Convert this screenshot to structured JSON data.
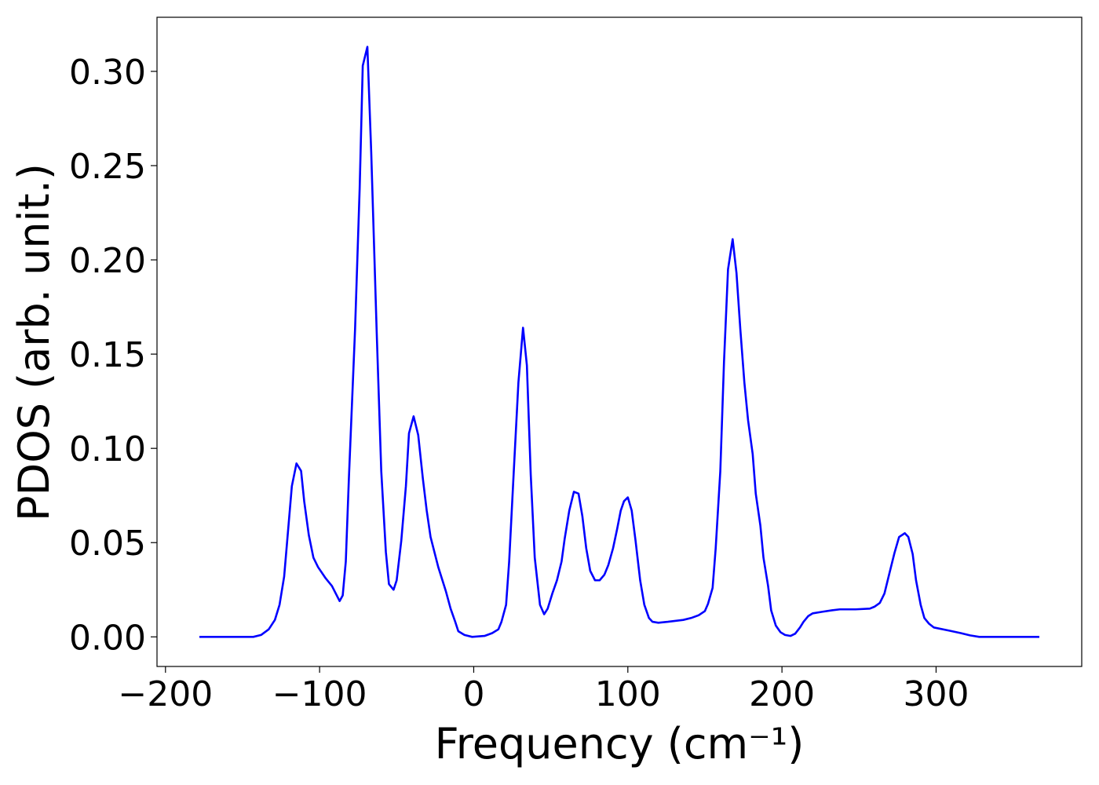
{
  "chart_data": {
    "type": "line",
    "xlabel": "Frequency (cm⁻¹)",
    "ylabel": "PDOS (arb. unit.)",
    "xlim": [
      -205.5,
      394.5
    ],
    "ylim": [
      -0.0157,
      0.3287
    ],
    "xticks": [
      {
        "value": -200,
        "label": "−200"
      },
      {
        "value": -100,
        "label": "−100"
      },
      0,
      100,
      200,
      300
    ],
    "yticks": [
      {
        "value": 0,
        "label": "0.00"
      },
      {
        "value": 0.05,
        "label": "0.05"
      },
      {
        "value": 0.1,
        "label": "0.10"
      },
      {
        "value": 0.15,
        "label": "0.15"
      },
      {
        "value": 0.2,
        "label": "0.20"
      },
      {
        "value": 0.25,
        "label": "0.25"
      },
      {
        "value": 0.3,
        "label": "0.30"
      }
    ],
    "grid": false,
    "series": [
      {
        "color": "#0000ff",
        "x": [
          -178,
          -143,
          -138,
          -133,
          -129,
          -126,
          -123,
          -118,
          -115,
          -112,
          -110,
          -107,
          -104,
          -101,
          -96,
          -92,
          -87,
          -85,
          -83,
          -81,
          -77,
          -74,
          -72,
          -69,
          -66.5,
          -63,
          -60,
          -57,
          -55,
          -52,
          -50,
          -47,
          -44,
          -42,
          -39,
          -36,
          -33,
          -30.5,
          -28,
          -23,
          -18,
          -15,
          -12,
          -10,
          -6,
          -1,
          7,
          12,
          16,
          18,
          21,
          23,
          26,
          29,
          32,
          34.5,
          37,
          39.6,
          43,
          45.7,
          48,
          51,
          54,
          57,
          59,
          62,
          65,
          68,
          70.5,
          73,
          75.6,
          78.7,
          81.7,
          84.8,
          87.3,
          90.4,
          93,
          95.4,
          97.5,
          100,
          102.5,
          105,
          108,
          110.7,
          113.7,
          116,
          119.8,
          126,
          136,
          141,
          146,
          150,
          152,
          155,
          157,
          160,
          162.4,
          165,
          168,
          170.5,
          173,
          175.6,
          178,
          181,
          183,
          186,
          188,
          191,
          193,
          196,
          199,
          202,
          205.6,
          208.6,
          211.7,
          214,
          217,
          220,
          226,
          232.5,
          237.5,
          247.7,
          257,
          260,
          263.5,
          266.5,
          269.5,
          273,
          276,
          279.7,
          282,
          284.8,
          287,
          290,
          292.4,
          295.4,
          298.5,
          308.6,
          316,
          322,
          328,
          367
        ],
        "values": [
          0,
          0,
          0.001,
          0.004,
          0.009,
          0.017,
          0.032,
          0.08,
          0.092,
          0.088,
          0.072,
          0.054,
          0.042,
          0.037,
          0.031,
          0.027,
          0.019,
          0.022,
          0.04,
          0.084,
          0.163,
          0.238,
          0.303,
          0.313,
          0.257,
          0.163,
          0.088,
          0.045,
          0.028,
          0.025,
          0.03,
          0.051,
          0.08,
          0.108,
          0.117,
          0.107,
          0.084,
          0.067,
          0.053,
          0.037,
          0.024,
          0.015,
          0.008,
          0.003,
          0.001,
          0,
          0.0005,
          0.002,
          0.004,
          0.008,
          0.017,
          0.04,
          0.088,
          0.135,
          0.164,
          0.144,
          0.086,
          0.042,
          0.017,
          0.012,
          0.015,
          0.023,
          0.03,
          0.04,
          0.052,
          0.067,
          0.077,
          0.076,
          0.064,
          0.047,
          0.035,
          0.03,
          0.03,
          0.033,
          0.038,
          0.047,
          0.057,
          0.067,
          0.072,
          0.074,
          0.067,
          0.051,
          0.03,
          0.017,
          0.01,
          0.008,
          0.0075,
          0.008,
          0.009,
          0.01,
          0.0115,
          0.0137,
          0.0175,
          0.026,
          0.047,
          0.088,
          0.146,
          0.195,
          0.211,
          0.193,
          0.163,
          0.135,
          0.115,
          0.097,
          0.076,
          0.059,
          0.042,
          0.027,
          0.014,
          0.006,
          0.0025,
          0.001,
          0.0005,
          0.0017,
          0.005,
          0.008,
          0.011,
          0.0125,
          0.0133,
          0.0141,
          0.0146,
          0.0146,
          0.015,
          0.016,
          0.018,
          0.023,
          0.033,
          0.0445,
          0.053,
          0.055,
          0.053,
          0.044,
          0.03,
          0.017,
          0.01,
          0.007,
          0.005,
          0.0033,
          0.002,
          0.0008,
          0,
          0
        ]
      }
    ]
  }
}
